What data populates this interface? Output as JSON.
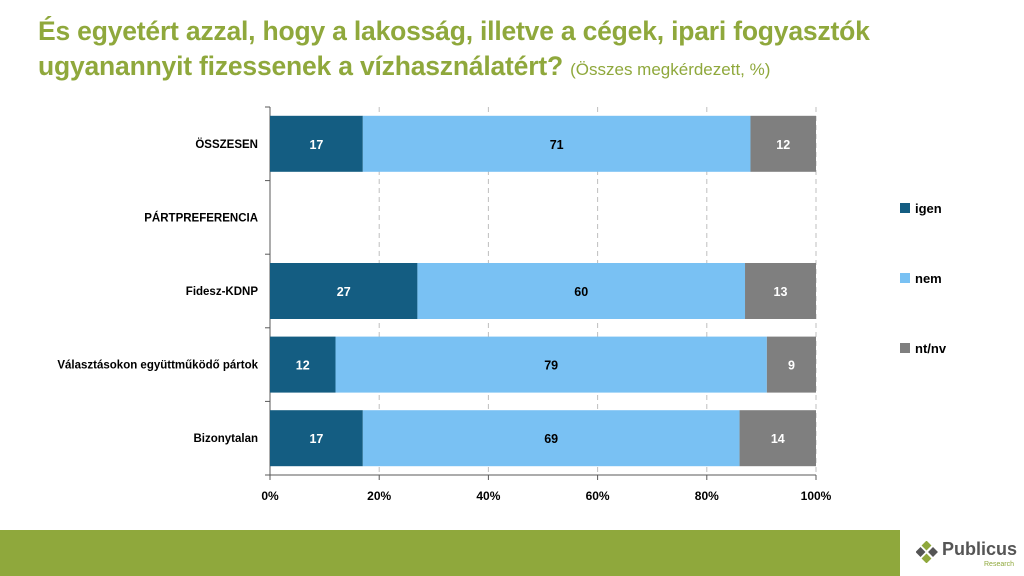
{
  "title": {
    "main": "És egyetért azzal, hogy a lakosság, illetve a cégek, ipari fogyasztók ugyanannyit fizessenek a vízhasználatért?",
    "sub": "(Összes megkérdezett, %)"
  },
  "logo": {
    "name": "Publicus",
    "tagline": "Research"
  },
  "chart_data": {
    "type": "bar",
    "orientation": "horizontal",
    "stacked": true,
    "percent_axis": true,
    "categories": [
      "ÖSSZESEN",
      "PÁRTPREFERENCIA",
      "Fidesz-KDNP",
      "Választásokon együttműködő pártok",
      "Bizonytalan"
    ],
    "series": [
      {
        "name": "igen",
        "color": "#145d82",
        "values": [
          17,
          null,
          27,
          12,
          17
        ]
      },
      {
        "name": "nem",
        "color": "#79c1f3",
        "values": [
          71,
          null,
          60,
          79,
          69
        ]
      },
      {
        "name": "nt/nv",
        "color": "#7f7f7f",
        "values": [
          12,
          null,
          13,
          9,
          14
        ]
      }
    ],
    "xlim": [
      0,
      100
    ],
    "xticks": [
      "0%",
      "20%",
      "40%",
      "60%",
      "80%",
      "100%"
    ],
    "grid": "vertical dashed",
    "legend_position": "right"
  }
}
